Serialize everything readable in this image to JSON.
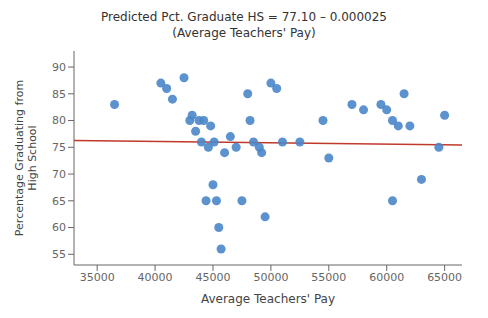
{
  "chart_data": {
    "type": "scatter",
    "title": "Predicted Pct. Graduate HS = 77.10 – 0.000025\n(Average Teachers' Pay)",
    "x_label": "Average Teachers' Pay",
    "y_label": "Percentage Graduating from\nHigh School",
    "xlim": [
      33000,
      66500
    ],
    "ylim": [
      53,
      93
    ],
    "xticks": [
      35000,
      40000,
      45000,
      50000,
      55000,
      60000,
      65000
    ],
    "yticks": [
      55,
      60,
      65,
      70,
      75,
      80,
      85,
      90
    ],
    "grid": false,
    "series": [
      {
        "type": "line",
        "color": "#c0392b",
        "x": [
          33000,
          66500
        ],
        "values": [
          76.275,
          75.4375
        ]
      },
      {
        "type": "scatter",
        "color": "#4a86c8",
        "x": [
          36500,
          40500,
          41500,
          42500,
          43000,
          43200,
          43500,
          43800,
          44000,
          44200,
          44400,
          44600,
          44800,
          45000,
          45100,
          45300,
          45500,
          45700,
          46000,
          46500,
          47000,
          47500,
          48000,
          48200,
          48500,
          49000,
          49200,
          49500,
          50000,
          50500,
          51000,
          52500,
          54500,
          55000,
          57000,
          58000,
          59500,
          60000,
          60500,
          61000,
          62000,
          63000,
          64500
        ],
        "values": [
          83,
          87,
          84,
          88,
          80,
          81,
          78,
          80,
          76,
          80,
          65,
          75,
          79,
          68,
          76,
          65,
          60,
          56,
          74,
          77,
          75,
          65,
          85,
          80,
          76,
          75,
          74,
          62,
          87,
          86,
          76,
          76,
          80,
          73,
          83,
          82,
          83,
          82,
          80,
          79,
          79,
          69,
          75
        ]
      },
      {
        "type": "scatter",
        "color": "#4a86c8",
        "x": [
          41000,
          60500,
          61500,
          65000
        ],
        "values": [
          86,
          65,
          85,
          81
        ]
      }
    ]
  }
}
